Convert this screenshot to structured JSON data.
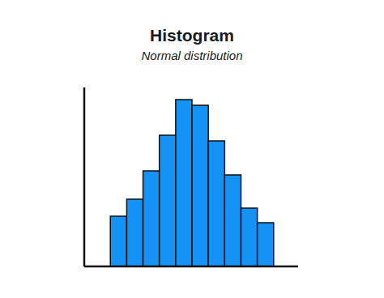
{
  "chart_data": {
    "type": "histogram",
    "title": "Histogram",
    "subtitle": "Normal distribution",
    "bins": [
      0,
      1,
      2,
      3,
      4,
      5,
      6,
      7,
      8,
      9,
      10
    ],
    "values": [
      6.2,
      8.3,
      11.8,
      16.2,
      20.6,
      19.9,
      15.5,
      11.3,
      7.2,
      5.4
    ],
    "color": "#1592f5",
    "xlim": [
      -1.6,
      11.5
    ],
    "ylim": [
      0,
      22.1
    ],
    "grid": false,
    "tick_labels": false
  }
}
